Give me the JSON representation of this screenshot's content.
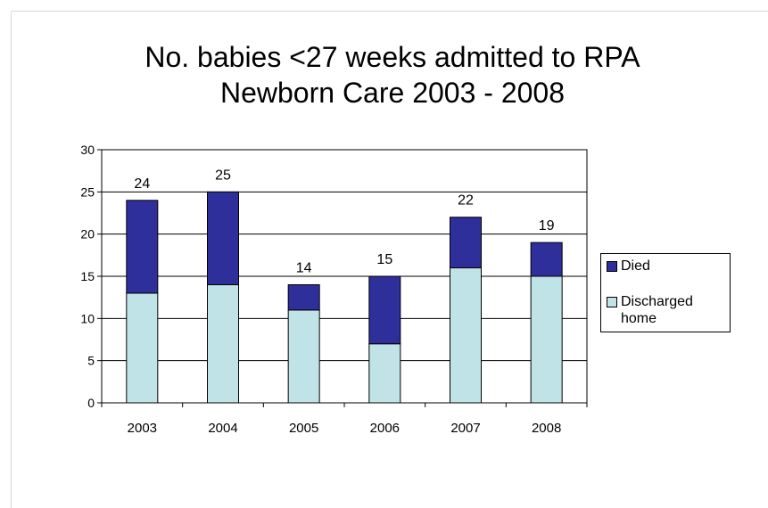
{
  "chart_data": {
    "type": "bar",
    "stacked": true,
    "title_lines": [
      "No. babies <27 weeks admitted to RPA",
      "Newborn Care 2003 - 2008"
    ],
    "categories": [
      "2003",
      "2004",
      "2005",
      "2006",
      "2007",
      "2008"
    ],
    "series": [
      {
        "name": "Discharged home",
        "values": [
          13,
          14,
          11,
          7,
          16,
          15
        ],
        "color": "#bfe3e6"
      },
      {
        "name": "Died",
        "values": [
          11,
          11,
          3,
          8,
          6,
          4
        ],
        "color": "#2e2f9b"
      }
    ],
    "totals": [
      24,
      25,
      14,
      15,
      22,
      19
    ],
    "ylim": [
      0,
      30
    ],
    "yticks": [
      0,
      5,
      10,
      15,
      20,
      25,
      30
    ],
    "grid": true,
    "legend_position": "right",
    "legend": [
      "Died",
      "Discharged home"
    ]
  }
}
